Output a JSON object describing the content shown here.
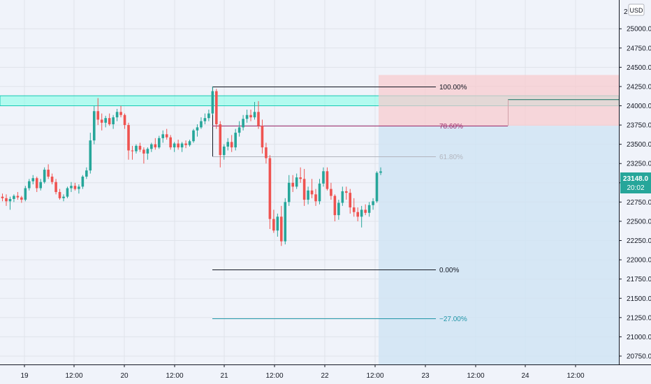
{
  "colors": {
    "background": "#f0f3fa",
    "grid": "#dfe3ea",
    "up": "#26a69a",
    "down": "#ef5350",
    "resistance_zone": "#7fffe6",
    "stop_zone": "#f8c9cc",
    "target_zone": "#cfe3f4"
  },
  "currency_badge": "USD",
  "price_badge": {
    "price": "23148.0",
    "countdown": "20:02"
  },
  "chart_data": {
    "type": "candlestick",
    "title": "",
    "ylim": [
      20700,
      25150
    ],
    "y_ticks": [
      "25000.0",
      "24750.0",
      "24500.0",
      "24250.0",
      "24000.0",
      "23750.0",
      "23500.0",
      "23250.0",
      "23000.0",
      "22750.0",
      "22500.0",
      "22250.0",
      "22000.0",
      "21750.0",
      "21500.0",
      "21250.0",
      "21000.0",
      "20750.0"
    ],
    "top_tick_partial": "2",
    "x_ticks": [
      "19",
      "12:00",
      "20",
      "12:00",
      "21",
      "12:00",
      "22",
      "12:00",
      "23",
      "12:00",
      "24",
      "12:00"
    ],
    "resistance_zone": {
      "low": 24000,
      "high": 24130
    },
    "fibonacci": [
      {
        "label": "100.00%",
        "price": 24250,
        "color": "#131722"
      },
      {
        "label": "78.60%",
        "price": 23740,
        "color": "#9c2a6b"
      },
      {
        "label": "61.80%",
        "price": 23340,
        "color": "#b2b5be"
      },
      {
        "label": "0.00%",
        "price": 21870,
        "color": "#131722"
      },
      {
        "label": "−27.00%",
        "price": 21240,
        "color": "#2196a8"
      }
    ],
    "position": {
      "target_top": 24080,
      "stop_top": 24400,
      "entry": 23740,
      "bottom": 20700
    },
    "candles": [
      [
        22820,
        22860,
        22760,
        22800
      ],
      [
        22800,
        22850,
        22700,
        22760
      ],
      [
        22760,
        22820,
        22650,
        22790
      ],
      [
        22790,
        22850,
        22750,
        22830
      ],
      [
        22830,
        22880,
        22780,
        22810
      ],
      [
        22810,
        22830,
        22740,
        22780
      ],
      [
        22780,
        22960,
        22760,
        22930
      ],
      [
        22930,
        23050,
        22900,
        23020
      ],
      [
        23020,
        23100,
        22980,
        23060
      ],
      [
        23060,
        23080,
        22880,
        22930
      ],
      [
        22930,
        23050,
        22900,
        23010
      ],
      [
        23010,
        23200,
        22990,
        23170
      ],
      [
        23170,
        23240,
        23050,
        23080
      ],
      [
        23080,
        23120,
        22980,
        23010
      ],
      [
        23010,
        23050,
        22850,
        22880
      ],
      [
        22880,
        22920,
        22780,
        22800
      ],
      [
        22800,
        22850,
        22760,
        22820
      ],
      [
        22820,
        22950,
        22800,
        22930
      ],
      [
        22930,
        23010,
        22880,
        22960
      ],
      [
        22960,
        23000,
        22900,
        22920
      ],
      [
        22920,
        22980,
        22860,
        22950
      ],
      [
        22950,
        23100,
        22920,
        23080
      ],
      [
        23080,
        23200,
        23050,
        23160
      ],
      [
        23160,
        23650,
        23120,
        23550
      ],
      [
        23550,
        24000,
        23500,
        23930
      ],
      [
        23930,
        24100,
        23750,
        23820
      ],
      [
        23820,
        23900,
        23680,
        23780
      ],
      [
        23780,
        23870,
        23720,
        23840
      ],
      [
        23840,
        23900,
        23740,
        23760
      ],
      [
        23760,
        23880,
        23700,
        23850
      ],
      [
        23850,
        23960,
        23800,
        23920
      ],
      [
        23920,
        24000,
        23850,
        23880
      ],
      [
        23880,
        23900,
        23700,
        23750
      ],
      [
        23750,
        23780,
        23300,
        23420
      ],
      [
        23420,
        23480,
        23300,
        23410
      ],
      [
        23410,
        23500,
        23380,
        23480
      ],
      [
        23480,
        23520,
        23400,
        23430
      ],
      [
        23430,
        23460,
        23250,
        23380
      ],
      [
        23380,
        23460,
        23300,
        23440
      ],
      [
        23440,
        23520,
        23400,
        23500
      ],
      [
        23500,
        23580,
        23430,
        23460
      ],
      [
        23460,
        23610,
        23440,
        23580
      ],
      [
        23580,
        23680,
        23520,
        23630
      ],
      [
        23630,
        23700,
        23560,
        23590
      ],
      [
        23590,
        23620,
        23430,
        23460
      ],
      [
        23460,
        23530,
        23400,
        23510
      ],
      [
        23510,
        23560,
        23430,
        23460
      ],
      [
        23460,
        23530,
        23400,
        23510
      ],
      [
        23510,
        23550,
        23450,
        23490
      ],
      [
        23490,
        23560,
        23470,
        23540
      ],
      [
        23540,
        23700,
        23520,
        23680
      ],
      [
        23680,
        23760,
        23600,
        23720
      ],
      [
        23720,
        23850,
        23700,
        23800
      ],
      [
        23800,
        23900,
        23760,
        23840
      ],
      [
        23840,
        23950,
        23800,
        23900
      ],
      [
        23900,
        24250,
        23880,
        24190
      ],
      [
        24190,
        24220,
        23700,
        23760
      ],
      [
        23760,
        23800,
        23200,
        23360
      ],
      [
        23360,
        23500,
        23300,
        23470
      ],
      [
        23470,
        23580,
        23420,
        23530
      ],
      [
        23530,
        23620,
        23400,
        23460
      ],
      [
        23460,
        23700,
        23420,
        23650
      ],
      [
        23650,
        23800,
        23600,
        23720
      ],
      [
        23720,
        23880,
        23680,
        23830
      ],
      [
        23830,
        23950,
        23780,
        23880
      ],
      [
        23880,
        23950,
        23800,
        23850
      ],
      [
        23850,
        24050,
        23820,
        23920
      ],
      [
        23920,
        24060,
        23700,
        23740
      ],
      [
        23740,
        23820,
        23380,
        23460
      ],
      [
        23460,
        23520,
        23250,
        23320
      ],
      [
        23320,
        23360,
        22400,
        22530
      ],
      [
        22530,
        22650,
        22350,
        22380
      ],
      [
        22380,
        22600,
        22300,
        22560
      ],
      [
        22560,
        22700,
        22180,
        22240
      ],
      [
        22240,
        22800,
        22200,
        22750
      ],
      [
        22750,
        23100,
        22700,
        23000
      ],
      [
        23000,
        23100,
        22880,
        22950
      ],
      [
        22950,
        23120,
        22920,
        23070
      ],
      [
        23070,
        23200,
        23000,
        23050
      ],
      [
        23050,
        23180,
        22700,
        22780
      ],
      [
        22780,
        22950,
        22720,
        22900
      ],
      [
        22900,
        23050,
        22800,
        22850
      ],
      [
        22850,
        22920,
        22700,
        22760
      ],
      [
        22760,
        23050,
        22720,
        22990
      ],
      [
        22990,
        23200,
        22950,
        23150
      ],
      [
        23150,
        23200,
        22900,
        22920
      ],
      [
        22920,
        23000,
        22780,
        22830
      ],
      [
        22830,
        22850,
        22500,
        22580
      ],
      [
        22580,
        22780,
        22520,
        22740
      ],
      [
        22740,
        22950,
        22700,
        22890
      ],
      [
        22890,
        22950,
        22780,
        22870
      ],
      [
        22870,
        22920,
        22600,
        22680
      ],
      [
        22680,
        22800,
        22560,
        22620
      ],
      [
        22620,
        22680,
        22500,
        22560
      ],
      [
        22560,
        22700,
        22420,
        22650
      ],
      [
        22650,
        22720,
        22580,
        22610
      ],
      [
        22610,
        22750,
        22560,
        22710
      ],
      [
        22710,
        22800,
        22650,
        22760
      ],
      [
        22760,
        23150,
        22740,
        23130
      ],
      [
        23130,
        23200,
        23100,
        23148
      ]
    ]
  }
}
